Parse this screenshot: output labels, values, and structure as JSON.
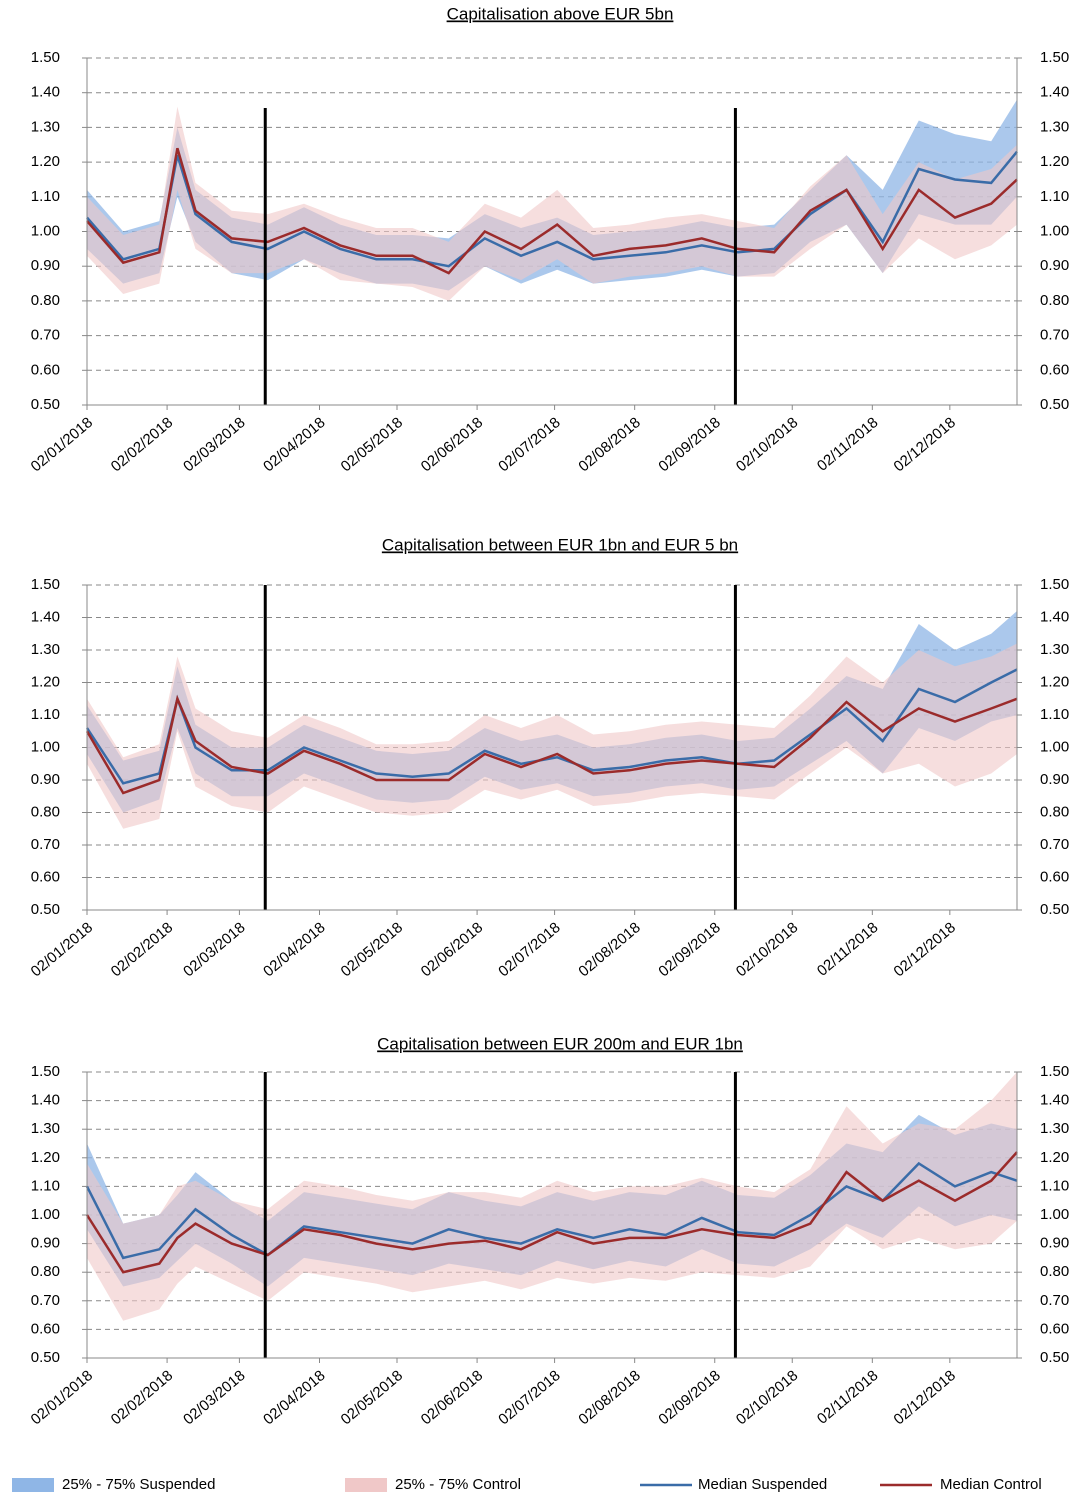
{
  "legend": [
    {
      "name": "25% - 75% Suspended",
      "color": "#8fb6e6",
      "kind": "band"
    },
    {
      "name": "25% - 75% Control",
      "color": "#f0c8c8",
      "kind": "band"
    },
    {
      "name": "Median Suspended",
      "color": "#3a6ca8",
      "kind": "line"
    },
    {
      "name": "Median Control",
      "color": "#9b2b2b",
      "kind": "line"
    }
  ],
  "chart_data": [
    {
      "type": "band-line",
      "title": "Capitalisation above EUR 5bn",
      "grid": true,
      "x": [
        "2018-01-02",
        "2018-01-16",
        "2018-01-30",
        "2018-02-06",
        "2018-02-13",
        "2018-02-27",
        "2018-03-13",
        "2018-03-27",
        "2018-04-10",
        "2018-04-24",
        "2018-05-08",
        "2018-05-22",
        "2018-06-05",
        "2018-06-19",
        "2018-07-03",
        "2018-07-17",
        "2018-07-31",
        "2018-08-14",
        "2018-08-28",
        "2018-09-11",
        "2018-09-25",
        "2018-10-09",
        "2018-10-23",
        "2018-11-06",
        "2018-11-20",
        "2018-12-04",
        "2018-12-18",
        "2018-12-28"
      ],
      "xlim": [
        "2018-01-02",
        "2018-12-28"
      ],
      "xticks": [
        {
          "value": "2018-01-02",
          "label": "02/01/2018"
        },
        {
          "value": "2018-02-02",
          "label": "02/02/2018"
        },
        {
          "value": "2018-03-02",
          "label": "02/03/2018"
        },
        {
          "value": "2018-04-02",
          "label": "02/04/2018"
        },
        {
          "value": "2018-05-02",
          "label": "02/05/2018"
        },
        {
          "value": "2018-06-02",
          "label": "02/06/2018"
        },
        {
          "value": "2018-07-02",
          "label": "02/07/2018"
        },
        {
          "value": "2018-08-02",
          "label": "02/08/2018"
        },
        {
          "value": "2018-09-02",
          "label": "02/09/2018"
        },
        {
          "value": "2018-10-02",
          "label": "02/10/2018"
        },
        {
          "value": "2018-11-02",
          "label": "02/11/2018"
        },
        {
          "value": "2018-12-02",
          "label": "02/12/2018"
        }
      ],
      "vlines": [
        "2018-03-12",
        "2018-09-10"
      ],
      "ylim": [
        0.5,
        1.5
      ],
      "yticks": [
        {
          "value": 0.5,
          "label": "0.50"
        },
        {
          "value": 0.6,
          "label": "0.60"
        },
        {
          "value": 0.7,
          "label": "0.70"
        },
        {
          "value": 0.8,
          "label": "0.80"
        },
        {
          "value": 0.9,
          "label": "0.90"
        },
        {
          "value": 1,
          "label": "1.00"
        },
        {
          "value": 1.1,
          "label": "1.10"
        },
        {
          "value": 1.2,
          "label": "1.20"
        },
        {
          "value": 1.3,
          "label": "1.30"
        },
        {
          "value": 1.4,
          "label": "1.40"
        },
        {
          "value": 1.5,
          "label": "1.50"
        }
      ],
      "series": [
        {
          "low": [
            0.95,
            0.85,
            0.88,
            1.1,
            0.97,
            0.88,
            0.86,
            0.92,
            0.88,
            0.85,
            0.85,
            0.83,
            0.9,
            0.85,
            0.89,
            0.85,
            0.86,
            0.87,
            0.89,
            0.87,
            0.88,
            0.97,
            1.02,
            0.88,
            1.05,
            1.02,
            1.02,
            1.1
          ],
          "high": [
            1.12,
            1.0,
            1.03,
            1.3,
            1.12,
            1.04,
            1.02,
            1.07,
            1.02,
            0.99,
            0.99,
            0.98,
            1.05,
            1.01,
            1.04,
            0.99,
            1.0,
            1.01,
            1.03,
            1.01,
            1.02,
            1.12,
            1.22,
            1.12,
            1.32,
            1.28,
            1.26,
            1.38
          ]
        },
        {
          "low": [
            0.93,
            0.82,
            0.85,
            1.12,
            0.95,
            0.88,
            0.88,
            0.92,
            0.86,
            0.85,
            0.84,
            0.8,
            0.9,
            0.86,
            0.92,
            0.85,
            0.87,
            0.88,
            0.9,
            0.87,
            0.87,
            0.95,
            1.02,
            0.88,
            0.98,
            0.92,
            0.96,
            1.02
          ],
          "high": [
            1.1,
            0.99,
            1.02,
            1.36,
            1.14,
            1.06,
            1.05,
            1.08,
            1.04,
            1.01,
            1.01,
            0.97,
            1.08,
            1.04,
            1.12,
            1.01,
            1.02,
            1.04,
            1.05,
            1.03,
            1.01,
            1.13,
            1.22,
            1.05,
            1.2,
            1.15,
            1.18,
            1.25
          ]
        },
        {
          "values": [
            1.04,
            0.92,
            0.95,
            1.22,
            1.05,
            0.97,
            0.95,
            1.0,
            0.95,
            0.92,
            0.92,
            0.9,
            0.98,
            0.93,
            0.97,
            0.92,
            0.93,
            0.94,
            0.96,
            0.94,
            0.95,
            1.05,
            1.12,
            0.97,
            1.18,
            1.15,
            1.14,
            1.23
          ]
        },
        {
          "values": [
            1.03,
            0.91,
            0.94,
            1.24,
            1.06,
            0.98,
            0.97,
            1.01,
            0.96,
            0.93,
            0.93,
            0.88,
            1.0,
            0.95,
            1.02,
            0.93,
            0.95,
            0.96,
            0.98,
            0.95,
            0.94,
            1.06,
            1.12,
            0.95,
            1.12,
            1.04,
            1.08,
            1.15
          ]
        }
      ]
    },
    {
      "type": "band-line",
      "title": "Capitalisation between EUR 1bn and EUR 5 bn",
      "grid": true,
      "x": [
        "2018-01-02",
        "2018-01-16",
        "2018-01-30",
        "2018-02-06",
        "2018-02-13",
        "2018-02-27",
        "2018-03-13",
        "2018-03-27",
        "2018-04-10",
        "2018-04-24",
        "2018-05-08",
        "2018-05-22",
        "2018-06-05",
        "2018-06-19",
        "2018-07-03",
        "2018-07-17",
        "2018-07-31",
        "2018-08-14",
        "2018-08-28",
        "2018-09-11",
        "2018-09-25",
        "2018-10-09",
        "2018-10-23",
        "2018-11-06",
        "2018-11-20",
        "2018-12-04",
        "2018-12-18",
        "2018-12-28"
      ],
      "xlim": [
        "2018-01-02",
        "2018-12-28"
      ],
      "xticks": [
        {
          "value": "2018-01-02",
          "label": "02/01/2018"
        },
        {
          "value": "2018-02-02",
          "label": "02/02/2018"
        },
        {
          "value": "2018-03-02",
          "label": "02/03/2018"
        },
        {
          "value": "2018-04-02",
          "label": "02/04/2018"
        },
        {
          "value": "2018-05-02",
          "label": "02/05/2018"
        },
        {
          "value": "2018-06-02",
          "label": "02/06/2018"
        },
        {
          "value": "2018-07-02",
          "label": "02/07/2018"
        },
        {
          "value": "2018-08-02",
          "label": "02/08/2018"
        },
        {
          "value": "2018-09-02",
          "label": "02/09/2018"
        },
        {
          "value": "2018-10-02",
          "label": "02/10/2018"
        },
        {
          "value": "2018-11-02",
          "label": "02/11/2018"
        },
        {
          "value": "2018-12-02",
          "label": "02/12/2018"
        }
      ],
      "vlines": [
        "2018-03-12",
        "2018-09-10"
      ],
      "ylim": [
        0.5,
        1.5
      ],
      "yticks": [
        {
          "value": 0.5,
          "label": "0.50"
        },
        {
          "value": 0.6,
          "label": "0.60"
        },
        {
          "value": 0.7,
          "label": "0.70"
        },
        {
          "value": 0.8,
          "label": "0.80"
        },
        {
          "value": 0.9,
          "label": "0.90"
        },
        {
          "value": 1,
          "label": "1.00"
        },
        {
          "value": 1.1,
          "label": "1.10"
        },
        {
          "value": 1.2,
          "label": "1.20"
        },
        {
          "value": 1.3,
          "label": "1.30"
        },
        {
          "value": 1.4,
          "label": "1.40"
        },
        {
          "value": 1.5,
          "label": "1.50"
        }
      ],
      "series": [
        {
          "low": [
            0.98,
            0.8,
            0.84,
            1.06,
            0.92,
            0.85,
            0.85,
            0.92,
            0.88,
            0.84,
            0.83,
            0.84,
            0.91,
            0.87,
            0.89,
            0.85,
            0.86,
            0.88,
            0.89,
            0.87,
            0.88,
            0.95,
            1.02,
            0.92,
            1.06,
            1.02,
            1.08,
            1.1
          ],
          "high": [
            1.13,
            0.96,
            0.99,
            1.25,
            1.07,
            1.0,
            1.0,
            1.07,
            1.03,
            0.99,
            0.98,
            0.99,
            1.06,
            1.02,
            1.04,
            1.0,
            1.01,
            1.03,
            1.04,
            1.02,
            1.03,
            1.12,
            1.22,
            1.18,
            1.38,
            1.3,
            1.35,
            1.42
          ]
        },
        {
          "low": [
            0.95,
            0.75,
            0.78,
            1.05,
            0.88,
            0.82,
            0.8,
            0.88,
            0.84,
            0.8,
            0.79,
            0.8,
            0.87,
            0.84,
            0.87,
            0.82,
            0.83,
            0.85,
            0.86,
            0.85,
            0.84,
            0.92,
            1.0,
            0.92,
            0.95,
            0.88,
            0.92,
            0.98
          ],
          "high": [
            1.15,
            0.97,
            1.01,
            1.28,
            1.12,
            1.05,
            1.03,
            1.1,
            1.06,
            1.01,
            1.01,
            1.02,
            1.1,
            1.06,
            1.1,
            1.04,
            1.05,
            1.07,
            1.08,
            1.07,
            1.06,
            1.16,
            1.28,
            1.2,
            1.3,
            1.25,
            1.28,
            1.32
          ]
        },
        {
          "values": [
            1.06,
            0.89,
            0.92,
            1.15,
            1.0,
            0.93,
            0.93,
            1.0,
            0.96,
            0.92,
            0.91,
            0.92,
            0.99,
            0.95,
            0.97,
            0.93,
            0.94,
            0.96,
            0.97,
            0.95,
            0.96,
            1.04,
            1.12,
            1.02,
            1.18,
            1.14,
            1.2,
            1.24
          ]
        },
        {
          "values": [
            1.05,
            0.86,
            0.9,
            1.15,
            1.02,
            0.94,
            0.92,
            0.99,
            0.95,
            0.9,
            0.9,
            0.9,
            0.98,
            0.94,
            0.98,
            0.92,
            0.93,
            0.95,
            0.96,
            0.95,
            0.94,
            1.03,
            1.14,
            1.05,
            1.12,
            1.08,
            1.12,
            1.15
          ]
        }
      ]
    },
    {
      "type": "band-line",
      "title": "Capitalisation between EUR 200m  and EUR 1bn",
      "grid": true,
      "x": [
        "2018-01-02",
        "2018-01-16",
        "2018-01-30",
        "2018-02-06",
        "2018-02-13",
        "2018-02-27",
        "2018-03-13",
        "2018-03-27",
        "2018-04-10",
        "2018-04-24",
        "2018-05-08",
        "2018-05-22",
        "2018-06-05",
        "2018-06-19",
        "2018-07-03",
        "2018-07-17",
        "2018-07-31",
        "2018-08-14",
        "2018-08-28",
        "2018-09-11",
        "2018-09-25",
        "2018-10-09",
        "2018-10-23",
        "2018-11-06",
        "2018-11-20",
        "2018-12-04",
        "2018-12-18",
        "2018-12-28"
      ],
      "xlim": [
        "2018-01-02",
        "2018-12-28"
      ],
      "xticks": [
        {
          "value": "2018-01-02",
          "label": "02/01/2018"
        },
        {
          "value": "2018-02-02",
          "label": "02/02/2018"
        },
        {
          "value": "2018-03-02",
          "label": "02/03/2018"
        },
        {
          "value": "2018-04-02",
          "label": "02/04/2018"
        },
        {
          "value": "2018-05-02",
          "label": "02/05/2018"
        },
        {
          "value": "2018-06-02",
          "label": "02/06/2018"
        },
        {
          "value": "2018-07-02",
          "label": "02/07/2018"
        },
        {
          "value": "2018-08-02",
          "label": "02/08/2018"
        },
        {
          "value": "2018-09-02",
          "label": "02/09/2018"
        },
        {
          "value": "2018-10-02",
          "label": "02/10/2018"
        },
        {
          "value": "2018-11-02",
          "label": "02/11/2018"
        },
        {
          "value": "2018-12-02",
          "label": "02/12/2018"
        }
      ],
      "vlines": [
        "2018-03-12",
        "2018-09-10"
      ],
      "ylim": [
        0.5,
        1.5
      ],
      "yticks": [
        {
          "value": 0.5,
          "label": "0.50"
        },
        {
          "value": 0.6,
          "label": "0.60"
        },
        {
          "value": 0.7,
          "label": "0.70"
        },
        {
          "value": 0.8,
          "label": "0.80"
        },
        {
          "value": 0.9,
          "label": "0.90"
        },
        {
          "value": 1,
          "label": "1.00"
        },
        {
          "value": 1.1,
          "label": "1.10"
        },
        {
          "value": 1.2,
          "label": "1.20"
        },
        {
          "value": 1.3,
          "label": "1.30"
        },
        {
          "value": 1.4,
          "label": "1.40"
        },
        {
          "value": 1.5,
          "label": "1.50"
        }
      ],
      "series": [
        {
          "low": [
            0.95,
            0.75,
            0.78,
            0.84,
            0.9,
            0.83,
            0.75,
            0.85,
            0.83,
            0.81,
            0.79,
            0.83,
            0.81,
            0.79,
            0.84,
            0.81,
            0.84,
            0.82,
            0.88,
            0.83,
            0.82,
            0.88,
            0.97,
            0.92,
            1.03,
            0.96,
            1.0,
            0.98
          ],
          "high": [
            1.25,
            0.97,
            1.0,
            1.07,
            1.15,
            1.05,
            0.98,
            1.08,
            1.06,
            1.04,
            1.02,
            1.08,
            1.05,
            1.03,
            1.08,
            1.05,
            1.08,
            1.07,
            1.12,
            1.07,
            1.06,
            1.14,
            1.25,
            1.22,
            1.35,
            1.28,
            1.32,
            1.3
          ]
        },
        {
          "low": [
            0.85,
            0.63,
            0.67,
            0.76,
            0.82,
            0.76,
            0.7,
            0.8,
            0.78,
            0.76,
            0.73,
            0.75,
            0.77,
            0.74,
            0.78,
            0.76,
            0.78,
            0.77,
            0.8,
            0.79,
            0.78,
            0.82,
            0.96,
            0.88,
            0.92,
            0.88,
            0.9,
            0.98
          ],
          "high": [
            1.18,
            0.97,
            1.0,
            1.1,
            1.12,
            1.05,
            1.02,
            1.12,
            1.1,
            1.07,
            1.05,
            1.08,
            1.08,
            1.06,
            1.12,
            1.08,
            1.1,
            1.1,
            1.13,
            1.1,
            1.08,
            1.16,
            1.38,
            1.25,
            1.32,
            1.3,
            1.4,
            1.5
          ]
        },
        {
          "values": [
            1.1,
            0.85,
            0.88,
            0.95,
            1.02,
            0.93,
            0.86,
            0.96,
            0.94,
            0.92,
            0.9,
            0.95,
            0.92,
            0.9,
            0.95,
            0.92,
            0.95,
            0.93,
            0.99,
            0.94,
            0.93,
            1.0,
            1.1,
            1.05,
            1.18,
            1.1,
            1.15,
            1.12
          ]
        },
        {
          "values": [
            1.0,
            0.8,
            0.83,
            0.92,
            0.97,
            0.9,
            0.86,
            0.95,
            0.93,
            0.9,
            0.88,
            0.9,
            0.91,
            0.88,
            0.94,
            0.9,
            0.92,
            0.92,
            0.95,
            0.93,
            0.92,
            0.97,
            1.15,
            1.05,
            1.12,
            1.05,
            1.12,
            1.22
          ]
        }
      ]
    }
  ]
}
